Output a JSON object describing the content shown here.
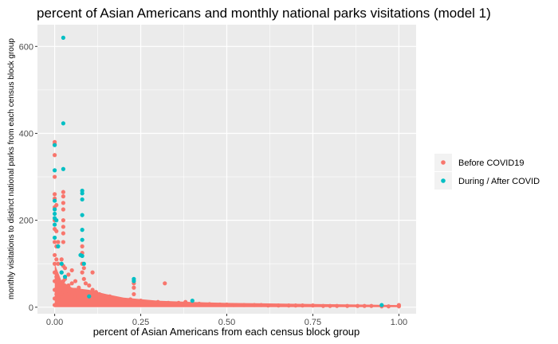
{
  "chart_data": {
    "type": "scatter",
    "title": "percent of Asian Americans and monthly national parks visitations (model 1)",
    "xlabel": "percent of Asian Americans from each census block group",
    "ylabel": "monthly visitations to distinct national parks from each census block group",
    "xlim": [
      -0.05,
      1.05
    ],
    "ylim": [
      -15,
      650
    ],
    "x_ticks": [
      0,
      0.25,
      0.5,
      0.75,
      1
    ],
    "x_tick_labels": [
      "0.00",
      "0.25",
      "0.50",
      "0.75",
      "1.00"
    ],
    "y_ticks": [
      0,
      200,
      400,
      600
    ],
    "y_tick_labels": [
      "0",
      "200",
      "400",
      "600"
    ],
    "grid": true,
    "legend_position": "right",
    "series": [
      {
        "name": "Before COVID19",
        "color": "#F8766D",
        "points": [
          [
            0,
            380
          ],
          [
            0,
            375
          ],
          [
            0,
            350
          ],
          [
            0,
            300
          ],
          [
            0,
            260
          ],
          [
            0,
            250
          ],
          [
            0,
            230
          ],
          [
            0,
            200
          ],
          [
            0,
            180
          ],
          [
            0,
            150
          ],
          [
            0,
            120
          ],
          [
            0,
            100
          ],
          [
            0,
            80
          ],
          [
            0,
            60
          ],
          [
            0,
            40
          ],
          [
            0,
            20
          ],
          [
            0,
            5
          ],
          [
            0.005,
            235
          ],
          [
            0.005,
            175
          ],
          [
            0.005,
            140
          ],
          [
            0.005,
            110
          ],
          [
            0.005,
            70
          ],
          [
            0.005,
            30
          ],
          [
            0.01,
            150
          ],
          [
            0.01,
            100
          ],
          [
            0.01,
            60
          ],
          [
            0.01,
            20
          ],
          [
            0.02,
            110
          ],
          [
            0.02,
            80
          ],
          [
            0.02,
            50
          ],
          [
            0.02,
            30
          ],
          [
            0.025,
            265
          ],
          [
            0.025,
            255
          ],
          [
            0.025,
            240
          ],
          [
            0.025,
            225
          ],
          [
            0.025,
            200
          ],
          [
            0.025,
            185
          ],
          [
            0.025,
            170
          ],
          [
            0.025,
            150
          ],
          [
            0.025,
            95
          ],
          [
            0.025,
            60
          ],
          [
            0.03,
            90
          ],
          [
            0.03,
            65
          ],
          [
            0.03,
            40
          ],
          [
            0.04,
            75
          ],
          [
            0.04,
            50
          ],
          [
            0.04,
            30
          ],
          [
            0.05,
            85
          ],
          [
            0.05,
            55
          ],
          [
            0.05,
            25
          ],
          [
            0.06,
            60
          ],
          [
            0.06,
            40
          ],
          [
            0.07,
            45
          ],
          [
            0.07,
            25
          ],
          [
            0.08,
            140
          ],
          [
            0.08,
            125
          ],
          [
            0.08,
            100
          ],
          [
            0.08,
            80
          ],
          [
            0.085,
            90
          ],
          [
            0.085,
            65
          ],
          [
            0.09,
            55
          ],
          [
            0.09,
            35
          ],
          [
            0.1,
            50
          ],
          [
            0.1,
            30
          ],
          [
            0.11,
            80
          ],
          [
            0.11,
            40
          ],
          [
            0.12,
            35
          ],
          [
            0.12,
            20
          ],
          [
            0.13,
            30
          ],
          [
            0.14,
            25
          ],
          [
            0.15,
            20
          ],
          [
            0.16,
            25
          ],
          [
            0.18,
            18
          ],
          [
            0.2,
            15
          ],
          [
            0.22,
            18
          ],
          [
            0.23,
            55
          ],
          [
            0.23,
            45
          ],
          [
            0.23,
            30
          ],
          [
            0.25,
            15
          ],
          [
            0.28,
            10
          ],
          [
            0.3,
            12
          ],
          [
            0.32,
            55
          ],
          [
            0.33,
            10
          ],
          [
            0.35,
            8
          ],
          [
            0.36,
            10
          ],
          [
            0.38,
            12
          ],
          [
            0.4,
            9
          ],
          [
            0.42,
            8
          ],
          [
            0.45,
            7
          ],
          [
            0.48,
            6
          ],
          [
            0.5,
            6
          ],
          [
            0.52,
            5
          ],
          [
            0.55,
            5
          ],
          [
            0.58,
            5
          ],
          [
            0.6,
            5
          ],
          [
            0.62,
            4
          ],
          [
            0.65,
            4
          ],
          [
            0.68,
            4
          ],
          [
            0.7,
            4
          ],
          [
            0.72,
            4
          ],
          [
            0.75,
            4
          ],
          [
            0.78,
            3
          ],
          [
            0.8,
            3
          ],
          [
            0.82,
            3
          ],
          [
            0.85,
            3
          ],
          [
            0.88,
            3
          ],
          [
            0.9,
            3
          ],
          [
            0.92,
            3
          ],
          [
            0.95,
            2
          ],
          [
            0.97,
            2
          ],
          [
            1.0,
            2
          ],
          [
            1.0,
            5
          ]
        ]
      },
      {
        "name": "During / After COVID",
        "color": "#00BFC4",
        "points": [
          [
            0,
            373
          ],
          [
            0,
            315
          ],
          [
            0,
            245
          ],
          [
            0,
            225
          ],
          [
            0,
            215
          ],
          [
            0,
            205
          ],
          [
            0,
            190
          ],
          [
            0,
            160
          ],
          [
            0.005,
            200
          ],
          [
            0.01,
            140
          ],
          [
            0.025,
            620
          ],
          [
            0.025,
            423
          ],
          [
            0.025,
            318
          ],
          [
            0.02,
            100
          ],
          [
            0.02,
            80
          ],
          [
            0.03,
            70
          ],
          [
            0.08,
            268
          ],
          [
            0.08,
            262
          ],
          [
            0.08,
            248
          ],
          [
            0.08,
            212
          ],
          [
            0.08,
            178
          ],
          [
            0.08,
            155
          ],
          [
            0.08,
            118
          ],
          [
            0.075,
            120
          ],
          [
            0.085,
            100
          ],
          [
            0.1,
            25
          ],
          [
            0.23,
            65
          ],
          [
            0.23,
            60
          ],
          [
            0.4,
            15
          ],
          [
            0.95,
            5
          ]
        ]
      }
    ],
    "band": {
      "color": "#F8766D",
      "x": [
        0,
        0.02,
        0.05,
        0.1,
        0.15,
        0.2,
        0.3,
        0.4,
        0.5,
        0.6,
        0.7,
        0.8,
        0.9,
        1.0
      ],
      "top": [
        100,
        60,
        45,
        40,
        30,
        22,
        15,
        12,
        10,
        9,
        8,
        7,
        6,
        5
      ],
      "bottom": [
        0,
        0,
        0,
        0,
        0,
        0,
        0,
        0,
        0,
        0,
        0,
        0,
        0,
        0
      ]
    }
  }
}
